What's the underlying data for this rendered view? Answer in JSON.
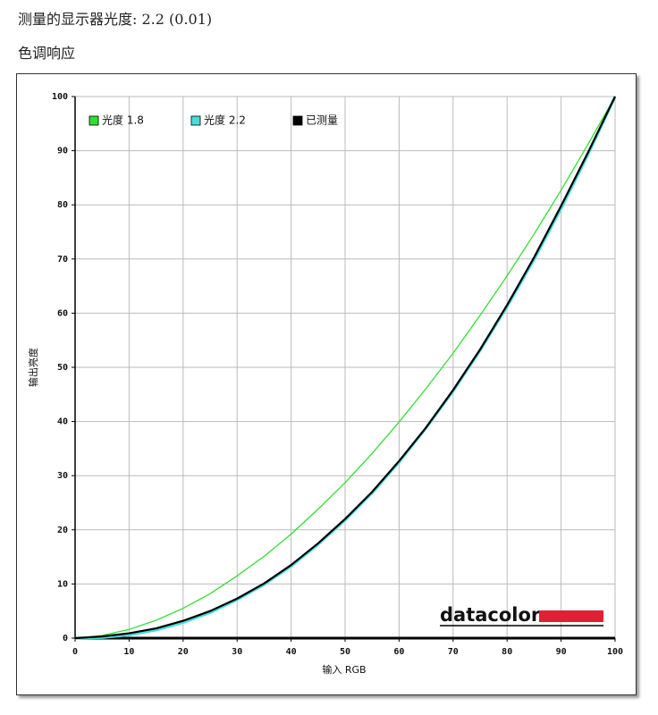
{
  "header": {
    "title": "测量的显示器光度:  2.2 (0.01)",
    "subtitle": "色调响应"
  },
  "chart_data": {
    "type": "line",
    "x_label": "输入 RGB",
    "y_label": "输出亮度",
    "annotation": "datacolor",
    "x": [
      0,
      5,
      10,
      15,
      20,
      25,
      30,
      35,
      40,
      45,
      50,
      55,
      60,
      65,
      70,
      75,
      80,
      85,
      90,
      95,
      100
    ],
    "series": [
      {
        "name": "光度 1.8",
        "color": "#33dd33",
        "values": [
          0,
          0.5,
          1.6,
          3.3,
          5.5,
          8.2,
          11.5,
          15.1,
          19.2,
          23.8,
          28.7,
          34.1,
          39.9,
          46.1,
          52.6,
          59.6,
          66.9,
          74.6,
          82.7,
          91.2,
          100
        ]
      },
      {
        "name": "光度 2.2",
        "color": "#44dddd",
        "values": [
          0,
          0.1,
          0.6,
          1.5,
          2.9,
          4.7,
          7.1,
          9.9,
          13.3,
          17.3,
          21.8,
          26.8,
          32.5,
          38.8,
          45.6,
          53.1,
          61.2,
          69.9,
          79.3,
          89.3,
          100
        ]
      },
      {
        "name": "已测量",
        "color": "#000000",
        "values": [
          0,
          0.3,
          0.9,
          1.8,
          3.2,
          5.0,
          7.3,
          10.1,
          13.5,
          17.5,
          22.0,
          27.0,
          32.7,
          38.9,
          45.8,
          53.3,
          61.5,
          70.3,
          79.8,
          89.7,
          100
        ]
      }
    ],
    "xlim": [
      0,
      100
    ],
    "ylim": [
      0,
      100
    ],
    "xticks": [
      0,
      10,
      20,
      30,
      40,
      50,
      60,
      70,
      80,
      90,
      100
    ],
    "yticks": [
      0,
      10,
      20,
      30,
      40,
      50,
      60,
      70,
      80,
      90,
      100
    ],
    "grid": true,
    "legend": "upper left"
  }
}
